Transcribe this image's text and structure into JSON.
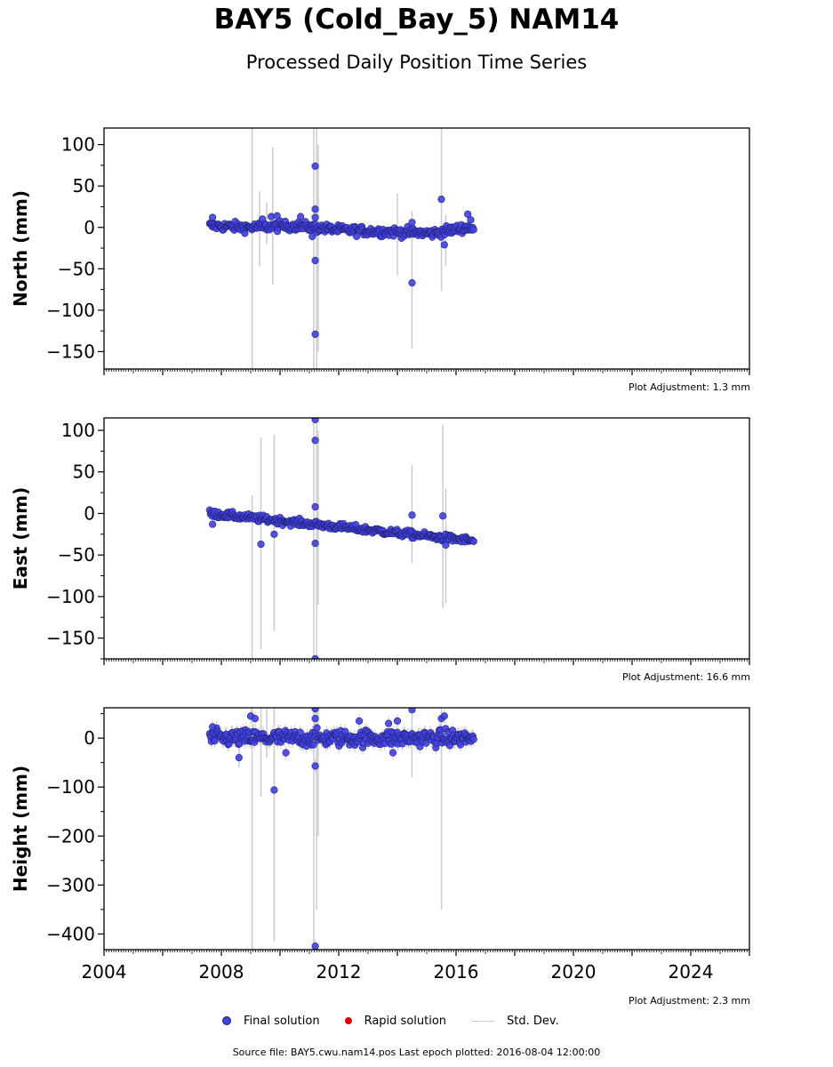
{
  "title": "BAY5 (Cold_Bay_5) NAM14",
  "subtitle": "Processed Daily Position Time Series",
  "adjustments": [
    "Plot Adjustment: 1.3 mm",
    "Plot Adjustment: 16.6 mm",
    "Plot Adjustment: 2.3 mm"
  ],
  "legend": {
    "final_label": "Final solution",
    "rapid_label": "Rapid solution",
    "std_label": "Std. Dev."
  },
  "footer": "Source file: BAY5.cwu.nam14.pos  Last epoch plotted: 2016-08-04 12:00:00",
  "colors": {
    "final": "#4040e8",
    "final_edge": "#222266",
    "rapid": "#dd0000",
    "std": "#cccccc"
  },
  "chart_data": [
    {
      "type": "scatter",
      "ylabel": "North (mm)",
      "xlim": [
        2004,
        2026
      ],
      "ylim": [
        -171,
        120
      ],
      "yticks": [
        100,
        50,
        0,
        -50,
        -100,
        -150
      ],
      "ytick_labels": [
        "100",
        "50",
        "0",
        "−50",
        "−100",
        "−150"
      ],
      "trend": [
        [
          2007.6,
          2
        ],
        [
          2009,
          0
        ],
        [
          2010.5,
          2
        ],
        [
          2012,
          -3
        ],
        [
          2013.5,
          -5
        ],
        [
          2015.2,
          -7
        ],
        [
          2016.4,
          0
        ],
        [
          2016.6,
          -2
        ]
      ],
      "noise": 4,
      "outliers": [
        [
          2007.7,
          12
        ],
        [
          2009.4,
          10
        ],
        [
          2009.7,
          13
        ],
        [
          2009.9,
          14
        ],
        [
          2010.7,
          13
        ],
        [
          2011.2,
          74
        ],
        [
          2011.2,
          22
        ],
        [
          2011.2,
          12
        ],
        [
          2011.2,
          -40
        ],
        [
          2011.2,
          -129
        ],
        [
          2011.1,
          -11
        ],
        [
          2014.5,
          6
        ],
        [
          2014.5,
          -67
        ],
        [
          2015.5,
          34
        ],
        [
          2015.6,
          -21
        ],
        [
          2016.4,
          16
        ],
        [
          2016.5,
          9
        ]
      ],
      "errorbars": [
        [
          2009.05,
          -171,
          120
        ],
        [
          2009.3,
          -47,
          44
        ],
        [
          2009.55,
          -20,
          30
        ],
        [
          2009.75,
          -69,
          97
        ],
        [
          2011.15,
          -171,
          120
        ],
        [
          2011.25,
          -171,
          120
        ],
        [
          2011.3,
          -150,
          100
        ],
        [
          2014.0,
          -58,
          41
        ],
        [
          2014.5,
          -146,
          20
        ],
        [
          2015.5,
          -77,
          120
        ],
        [
          2015.65,
          -46,
          15
        ]
      ]
    },
    {
      "type": "scatter",
      "ylabel": "East (mm)",
      "xlim": [
        2004,
        2026
      ],
      "ylim": [
        -175,
        115
      ],
      "yticks": [
        100,
        50,
        0,
        -50,
        -100,
        -150
      ],
      "ytick_labels": [
        "100",
        "50",
        "0",
        "−50",
        "−100",
        "−150"
      ],
      "trend": [
        [
          2007.6,
          0
        ],
        [
          2016.6,
          -33
        ]
      ],
      "noise": 3,
      "outliers": [
        [
          2007.7,
          -13
        ],
        [
          2009.35,
          -37
        ],
        [
          2009.8,
          -25
        ],
        [
          2011.2,
          113
        ],
        [
          2011.2,
          88
        ],
        [
          2011.2,
          8
        ],
        [
          2011.2,
          -36
        ],
        [
          2011.2,
          -175
        ],
        [
          2014.5,
          -2
        ],
        [
          2015.55,
          -3
        ],
        [
          2015.65,
          -38
        ]
      ],
      "errorbars": [
        [
          2009.05,
          -175,
          22
        ],
        [
          2009.35,
          -163,
          91
        ],
        [
          2009.8,
          -142,
          94
        ],
        [
          2011.15,
          -175,
          115
        ],
        [
          2011.25,
          -175,
          115
        ],
        [
          2011.3,
          -110,
          100
        ],
        [
          2014.5,
          -60,
          58
        ],
        [
          2015.55,
          -114,
          107
        ],
        [
          2015.65,
          -108,
          30
        ]
      ]
    },
    {
      "type": "scatter",
      "ylabel": "Height (mm)",
      "xlabel": "",
      "xlim": [
        2004,
        2026
      ],
      "ylim": [
        -432,
        62
      ],
      "yticks": [
        0,
        -100,
        -200,
        -300,
        -400
      ],
      "ytick_labels": [
        "0",
        "−100",
        "−200",
        "−300",
        "−400"
      ],
      "xticks": [
        2004,
        2008,
        2012,
        2016,
        2020,
        2024
      ],
      "trend": [
        [
          2007.6,
          0
        ],
        [
          2016.6,
          0
        ]
      ],
      "noise": 12,
      "outliers": [
        [
          2007.7,
          23
        ],
        [
          2008.6,
          -40
        ],
        [
          2009.0,
          45
        ],
        [
          2009.15,
          40
        ],
        [
          2009.8,
          -106
        ],
        [
          2010.2,
          -30
        ],
        [
          2011.2,
          60
        ],
        [
          2011.2,
          40
        ],
        [
          2011.2,
          -57
        ],
        [
          2011.2,
          -425
        ],
        [
          2012.7,
          35
        ],
        [
          2013.7,
          30
        ],
        [
          2013.85,
          -30
        ],
        [
          2014.0,
          35
        ],
        [
          2014.5,
          58
        ],
        [
          2015.5,
          40
        ],
        [
          2015.6,
          45
        ]
      ],
      "errorbars": [
        [
          2008.6,
          -60,
          20
        ],
        [
          2009.05,
          -432,
          62
        ],
        [
          2009.35,
          -120,
          62
        ],
        [
          2009.55,
          -40,
          62
        ],
        [
          2009.8,
          -415,
          62
        ],
        [
          2011.15,
          -432,
          62
        ],
        [
          2011.25,
          -350,
          62
        ],
        [
          2011.3,
          -200,
          62
        ],
        [
          2014.5,
          -80,
          62
        ],
        [
          2015.5,
          -350,
          62
        ]
      ]
    }
  ]
}
